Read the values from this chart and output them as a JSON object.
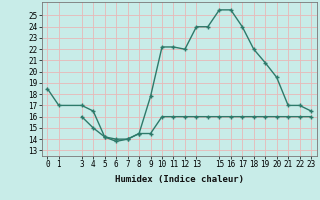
{
  "line1_x": [
    0,
    1,
    3,
    4,
    5,
    6,
    7,
    8,
    9,
    10,
    11,
    12,
    13,
    14,
    15,
    16,
    17,
    18,
    19,
    20,
    21,
    22,
    23
  ],
  "line1_y": [
    18.5,
    17.0,
    17.0,
    16.5,
    14.2,
    13.8,
    14.0,
    14.5,
    17.8,
    22.2,
    22.2,
    22.0,
    24.0,
    24.0,
    25.5,
    25.5,
    24.0,
    22.0,
    20.8,
    19.5,
    17.0,
    17.0,
    16.5
  ],
  "line2_x": [
    3,
    4,
    5,
    6,
    7,
    8,
    9,
    10,
    11,
    12,
    13,
    14,
    15,
    16,
    17,
    18,
    19,
    20,
    21,
    22,
    23
  ],
  "line2_y": [
    16.0,
    15.0,
    14.2,
    14.0,
    14.0,
    14.5,
    14.5,
    16.0,
    16.0,
    16.0,
    16.0,
    16.0,
    16.0,
    16.0,
    16.0,
    16.0,
    16.0,
    16.0,
    16.0,
    16.0,
    16.0
  ],
  "line_color": "#2d7a6a",
  "bg_color": "#c8ece8",
  "grid_color": "#e8b8b8",
  "xlabel": "Humidex (Indice chaleur)",
  "xtick_positions": [
    0,
    1,
    3,
    4,
    5,
    6,
    7,
    8,
    9,
    10,
    11,
    12,
    13,
    15,
    16,
    17,
    18,
    19,
    20,
    21,
    22,
    23
  ],
  "xtick_labels": [
    "0",
    "1",
    "3",
    "4",
    "5",
    "6",
    "7",
    "8",
    "9",
    "10",
    "11",
    "12",
    "13",
    "15",
    "16",
    "17",
    "18",
    "19",
    "20",
    "21",
    "22",
    "23"
  ],
  "ylim": [
    12.5,
    26.2
  ],
  "xlim": [
    -0.5,
    23.5
  ],
  "yticks": [
    13,
    14,
    15,
    16,
    17,
    18,
    19,
    20,
    21,
    22,
    23,
    24,
    25
  ],
  "ytick_labels": [
    "13",
    "14",
    "15",
    "16",
    "17",
    "18",
    "19",
    "20",
    "21",
    "22",
    "23",
    "24",
    "25"
  ],
  "marker_size": 2.5,
  "line_width": 1.0,
  "xlabel_fontsize": 6.5,
  "tick_fontsize": 5.5
}
